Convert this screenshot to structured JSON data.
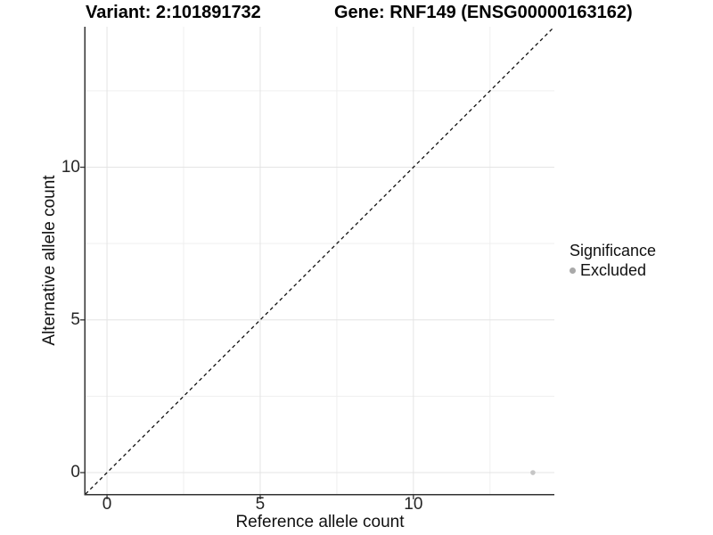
{
  "chart_data": {
    "type": "scatter",
    "title_left": "Variant: 2:101891732",
    "title_right": "Gene: RNF149 (ENSG00000163162)",
    "xlabel": "Reference allele count",
    "ylabel": "Alternative allele count",
    "xlim": [
      -0.7,
      14.6
    ],
    "ylim": [
      -0.7,
      14.6
    ],
    "x_major_ticks": [
      0,
      5,
      10
    ],
    "y_major_ticks": [
      0,
      5,
      10
    ],
    "x_minor_gridlines": [
      2.5,
      7.5,
      12.5
    ],
    "y_minor_gridlines": [
      2.5,
      7.5,
      12.5
    ],
    "grid": "on",
    "identity_line": {
      "style": "dashed",
      "from_xy": [
        -0.7,
        -0.7
      ],
      "to_xy": [
        14.6,
        14.6
      ],
      "color": "#111111"
    },
    "series": [
      {
        "name": "Excluded",
        "color": "#c6c6c6",
        "points": [
          {
            "x": 13.9,
            "y": 0
          }
        ]
      }
    ],
    "legend": {
      "title": "Significance",
      "position": "right",
      "entries": [
        {
          "label": "Excluded",
          "key_color": "#a9a9a9"
        }
      ]
    },
    "colors": {
      "background": "#ffffff",
      "grid_major": "#e4e4e4",
      "grid_minor": "#efefef",
      "axis_line": "#333333",
      "tick_mark": "#333333",
      "tick_text": "#262626",
      "title_text": "#000000"
    }
  }
}
